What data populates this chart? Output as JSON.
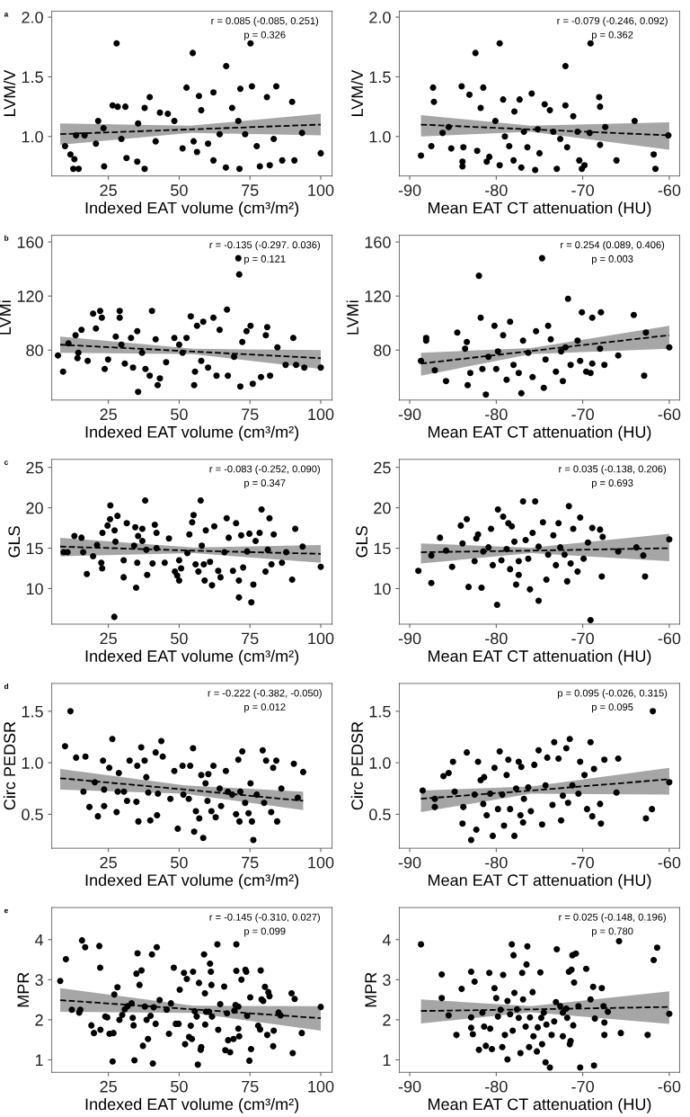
{
  "chart_data": [
    {
      "type": "scatter",
      "title": "a",
      "xlabel": "Indexed EAT volume (cm³/m²)",
      "ylabel": "LVM/V",
      "xlim": [
        5,
        104
      ],
      "xticks": [
        25,
        50,
        75,
        100
      ],
      "ylim": [
        0.67,
        2.05
      ],
      "yticks": [
        {
          "value": 1,
          "label": "1.0"
        },
        {
          "value": 1.5,
          "label": "1.5"
        },
        {
          "value": 2,
          "label": "2.0"
        }
      ],
      "annotations": [
        "r = 0.085 (-0.085, 0.251)",
        "p = 0.326"
      ],
      "series": [
        {
          "marker": "circle",
          "color": "#000000",
          "x": [
            9.7,
            11.6,
            13.6,
            16.6,
            13,
            12.6,
            14.5,
            21.4,
            23.3,
            20.6,
            23.5,
            26.5,
            27.9,
            28.3,
            29.6,
            31,
            31.4,
            35.2,
            35.5,
            37.8,
            37.8,
            39.6,
            41.7,
            43.2,
            46,
            48.3,
            51.2,
            52.6,
            54.8,
            55.1,
            57,
            56.3,
            57.8,
            60.2,
            62.1,
            62.1,
            64.3,
            66.6,
            66.5,
            68.7,
            70.9,
            71.3,
            71.6,
            73.3,
            75.2,
            75.7,
            77.4,
            78.5,
            81,
            82,
            83.4,
            84.3,
            86.4,
            89.9,
            90.7,
            93.4,
            100
          ],
          "values": [
            0.92,
            0.85,
            1.01,
            1.01,
            0.81,
            0.73,
            0.73,
            1.13,
            1.07,
            0.94,
            0.75,
            1.26,
            1.78,
            1.25,
            0.98,
            1.25,
            0.82,
            0.79,
            1.11,
            1.24,
            0.73,
            1.33,
            0.96,
            1.2,
            1.19,
            1.13,
            0.9,
            1.41,
            1.7,
            0.96,
            1.34,
            0.87,
            1.22,
            0.94,
            1.37,
            0.8,
            1.02,
            1.59,
            0.74,
            1.24,
            1.13,
            0.73,
            1.4,
            1.02,
            1.78,
            1.42,
            0.92,
            0.75,
            1.33,
            0.76,
            0.98,
            1.42,
            0.8,
            1.29,
            0.8,
            1.03,
            0.86
          ]
        },
        {
          "type": "line",
          "color": "#000000",
          "line_style": "dashed",
          "x": [
            8,
            54,
            100
          ],
          "values": [
            1.02,
            1.06,
            1.1
          ],
          "lower": [
            0.93,
            1.03,
            1.01
          ],
          "upper": [
            1.11,
            1.09,
            1.19
          ]
        }
      ]
    },
    {
      "type": "scatter",
      "xlabel": "Mean EAT CT attenuation (HU)",
      "ylabel": "LVM/V",
      "xlim": [
        -91.2,
        -58.8
      ],
      "xticks": [
        -90,
        -80,
        -70,
        -60
      ],
      "ylim": [
        0.67,
        2.05
      ],
      "yticks": [
        {
          "value": 1,
          "label": "1.0"
        },
        {
          "value": 1.5,
          "label": "1.5"
        },
        {
          "value": 2,
          "label": "2.0"
        }
      ],
      "annotations": [
        "r = -0.079 (-0.246, 0.092)",
        "p = 0.362"
      ],
      "series": [
        {
          "marker": "circle",
          "color": "#000000",
          "x": [
            -88.7,
            -87.3,
            -87.2,
            -87.5,
            -86.2,
            -85.5,
            -85.2,
            -84,
            -83.9,
            -83.9,
            -83.8,
            -83.1,
            -82.4,
            -82.2,
            -81.8,
            -81.5,
            -81.1,
            -80.8,
            -80.1,
            -79.6,
            -79.6,
            -79.2,
            -79,
            -78.5,
            -78,
            -77.9,
            -77.3,
            -77.1,
            -76.8,
            -76.4,
            -75.9,
            -75.5,
            -75.2,
            -75,
            -74.4,
            -73.8,
            -73.4,
            -73,
            -72.6,
            -72,
            -72,
            -71.8,
            -71.1,
            -70.6,
            -70.4,
            -70.1,
            -69.8,
            -69.1,
            -69.2,
            -68.1,
            -68,
            -68,
            -67.4,
            -66.1,
            -64,
            -61.8,
            -61.6,
            -60.1
          ],
          "values": [
            0.84,
            1.41,
            1.29,
            0.92,
            1.03,
            1.08,
            0.9,
            1.42,
            0.79,
            0.75,
            0.91,
            1.35,
            1.7,
            0.88,
            1.24,
            1.41,
            0.79,
            0.83,
            1.13,
            1.78,
            0.76,
            1.31,
            1,
            0.92,
            0.8,
            1.21,
            1.31,
            0.74,
            1.04,
            0.91,
            1.36,
            0.72,
            1.06,
            0.86,
            1.27,
            1.22,
            1.04,
            0.73,
            0.98,
            1.59,
            1.26,
            0.91,
            1.17,
            1.04,
            0.8,
            0.73,
            0.76,
            1.78,
            1.03,
            1.33,
            1.25,
            0.93,
            1.08,
            0.8,
            1.13,
            0.85,
            0.73,
            1.01
          ]
        },
        {
          "type": "line",
          "color": "#000000",
          "line_style": "dashed",
          "x": [
            -88.7,
            -76,
            -60
          ],
          "values": [
            1.1,
            1.06,
            1.01
          ],
          "lower": [
            1.0,
            1.04,
            0.89
          ],
          "upper": [
            1.18,
            1.09,
            1.12
          ]
        }
      ]
    },
    {
      "type": "scatter",
      "title": "b",
      "xlabel": "Indexed EAT volume (cm³/m²)",
      "ylabel": "LVMi",
      "xlim": [
        5,
        104
      ],
      "xticks": [
        25,
        50,
        75,
        100
      ],
      "ylim": [
        43,
        165
      ],
      "yticks": [
        80,
        120,
        160
      ],
      "annotations": [
        "r = -0.135 (-0.297. 0.036)",
        "p = 0.121"
      ],
      "series": [
        {
          "marker": "circle",
          "color": "#000000",
          "x": [
            7.2,
            9,
            10.9,
            13.4,
            14.1,
            14.4,
            15.5,
            17.7,
            19.6,
            20.6,
            22.1,
            22.7,
            23.7,
            24.9,
            27.6,
            29,
            29,
            29.6,
            30.8,
            33,
            33.7,
            35.2,
            35.5,
            36.9,
            38.1,
            39.6,
            40.4,
            41.7,
            42.4,
            43.2,
            45.4,
            48.3,
            50,
            51.2,
            52.6,
            54.1,
            55.3,
            55.6,
            56.3,
            57.8,
            58.5,
            60.2,
            62.1,
            63.2,
            64.3,
            66.9,
            67.2,
            69.4,
            70.9,
            71.2,
            71.6,
            72.3,
            73.8,
            75.2,
            76,
            78.9,
            80.6,
            81.1,
            82.1,
            84.7,
            87.6,
            90.3,
            91.3,
            94.2,
            100
          ],
          "values": [
            76,
            64,
            85,
            91,
            74,
            78,
            95,
            72,
            107,
            96,
            109,
            104,
            66,
            73,
            90,
            109,
            104,
            84,
            70,
            89,
            67,
            94,
            49,
            78,
            66,
            61,
            109,
            88,
            54,
            59,
            71,
            89,
            84,
            78,
            89,
            105,
            54,
            64,
            98,
            72,
            101,
            67,
            104,
            61,
            95,
            110,
            61,
            75,
            148,
            136,
            53,
            86,
            94,
            98,
            55,
            60,
            91,
            97,
            61,
            82,
            69,
            89,
            69,
            67,
            67
          ]
        },
        {
          "type": "line",
          "color": "#000000",
          "line_style": "dashed",
          "x": [
            8,
            55,
            100
          ],
          "values": [
            84,
            78.9,
            74
          ],
          "lower": [
            78,
            77,
            66
          ],
          "upper": [
            90,
            81,
            80
          ]
        }
      ]
    },
    {
      "type": "scatter",
      "xlabel": "Mean EAT CT attenuation (HU)",
      "ylabel": "LVMi",
      "xlim": [
        -91.2,
        -58.8
      ],
      "xticks": [
        -90,
        -80,
        -70,
        -60
      ],
      "ylim": [
        43,
        165
      ],
      "yticks": [
        80,
        120,
        160
      ],
      "annotations": [
        "r = 0.254 (0.089, 0.406)",
        "p = 0.003"
      ],
      "series": [
        {
          "marker": "circle",
          "color": "#000000",
          "x": [
            -88.7,
            -88.1,
            -88.1,
            -87.1,
            -85.8,
            -84.5,
            -83.6,
            -83.4,
            -83.3,
            -83,
            -82,
            -81.8,
            -81.6,
            -81.2,
            -80.9,
            -80.2,
            -80,
            -79.8,
            -79.2,
            -78.8,
            -78.4,
            -78,
            -77.4,
            -77.1,
            -76.9,
            -76.3,
            -75.8,
            -75.4,
            -74.7,
            -74.5,
            -74.3,
            -74,
            -73.7,
            -73.1,
            -72.5,
            -72.3,
            -72,
            -71.7,
            -71.4,
            -70.6,
            -70.3,
            -70.1,
            -69.6,
            -69.1,
            -68.9,
            -68.9,
            -68,
            -67.9,
            -67.5,
            -65.9,
            -64.1,
            -62.9,
            -62.7,
            -60
          ],
          "values": [
            72,
            89,
            87,
            65,
            57,
            93,
            81,
            86,
            54,
            63,
            135,
            104,
            66,
            47,
            75,
            98,
            66,
            79,
            91,
            58,
            101,
            69,
            63,
            48,
            87,
            78,
            60,
            94,
            148,
            52,
            73,
            98,
            88,
            64,
            79,
            57,
            82,
            118,
            69,
            87,
            72,
            108,
            64,
            63,
            104,
            70,
            81,
            108,
            69,
            76,
            106,
            61,
            93,
            82
          ]
        },
        {
          "type": "line",
          "color": "#000000",
          "line_style": "dashed",
          "x": [
            -88.7,
            -76,
            -60
          ],
          "values": [
            70,
            79.3,
            91
          ],
          "lower": [
            61,
            77,
            81
          ],
          "upper": [
            78,
            81.5,
            98
          ]
        }
      ]
    },
    {
      "type": "scatter",
      "title": "c",
      "xlabel": "Indexed EAT volume (cm³/m²)",
      "ylabel": "GLS",
      "xlim": [
        5,
        104
      ],
      "xticks": [
        25,
        50,
        75,
        100
      ],
      "ylim": [
        5.6,
        26
      ],
      "yticks": [
        10,
        15,
        20,
        25
      ],
      "annotations": [
        "r = -0.083 (-0.252, 0.090)",
        "p = 0.347"
      ],
      "series": [
        {
          "marker": "circle",
          "color": "#000000",
          "x": [
            9.2,
            10.6,
            13,
            15.5,
            16.1,
            17.4,
            19.6,
            21,
            22.5,
            22.8,
            22.9,
            24.7,
            25.6,
            25.7,
            27.2,
            27.5,
            28.2,
            27.1,
            30.4,
            30.4,
            31.5,
            34.1,
            34.5,
            34.8,
            35.2,
            35.5,
            37,
            37,
            38,
            38.4,
            38.7,
            40.6,
            41.4,
            42,
            42,
            44.9,
            46.4,
            48.5,
            49.3,
            50,
            50,
            50.7,
            52.9,
            53.6,
            54.6,
            55.1,
            55.8,
            56.8,
            57.6,
            58,
            58.7,
            59,
            59.4,
            60.9,
            61.6,
            62.4,
            63.8,
            64.6,
            66,
            66.8,
            67.5,
            69,
            70.1,
            71.1,
            71.1,
            71.9,
            72.6,
            74,
            74.8,
            75.5,
            76.2,
            77,
            78.4,
            79.1,
            80.5,
            81.3,
            81.9,
            82.6,
            83.4,
            86.3,
            87.8,
            89.9,
            91,
            93.6,
            100
          ],
          "values": [
            14.5,
            14.5,
            16.5,
            16.3,
            14.5,
            11.8,
            14,
            15.4,
            13.2,
            12.5,
            16.9,
            17.8,
            18.6,
            20.3,
            17.2,
            15.8,
            19,
            6.5,
            13.5,
            11.4,
            18.1,
            15.3,
            17.6,
            10.1,
            13.2,
            16.5,
            17.4,
            15.9,
            20.9,
            14.8,
            11.7,
            13.1,
            17.9,
            15,
            16.9,
            13.2,
            16.2,
            12.1,
            11.6,
            13.5,
            11,
            12.5,
            14.4,
            16.7,
            18.2,
            19.1,
            13,
            12.1,
            20.9,
            15.3,
            13,
            11,
            17.2,
            13.3,
            10.4,
            17.7,
            12.2,
            11.4,
            14.5,
            18.7,
            16.3,
            12.2,
            18.1,
            11,
            8.9,
            16.6,
            12.6,
            14.6,
            16.8,
            8.3,
            10.5,
            15.9,
            16.9,
            19.8,
            12.1,
            14.8,
            18.7,
            13,
            16.7,
            13.2,
            14.5,
            11.1,
            17.4,
            15.2,
            12.7
          ]
        },
        {
          "type": "line",
          "color": "#000000",
          "line_style": "dashed",
          "x": [
            8,
            55,
            100
          ],
          "values": [
            15.2,
            14.7,
            14.3
          ],
          "lower": [
            14.0,
            14.4,
            13.2
          ],
          "upper": [
            16.3,
            15.1,
            15.4
          ]
        }
      ]
    },
    {
      "type": "scatter",
      "xlabel": "Mean EAT CT attenuation (HU)",
      "ylabel": "GLS",
      "xlim": [
        -91.2,
        -58.8
      ],
      "xticks": [
        -90,
        -80,
        -70,
        -60
      ],
      "ylim": [
        5.6,
        26
      ],
      "yticks": [
        10,
        15,
        20,
        25
      ],
      "annotations": [
        "r = 0.035 (-0.138, 0.206)",
        "p = 0.693"
      ],
      "series": [
        {
          "marker": "circle",
          "color": "#000000",
          "x": [
            -89,
            -87.5,
            -87.5,
            -86.5,
            -85.8,
            -85.1,
            -84.1,
            -83.4,
            -83.9,
            -83.2,
            -82.5,
            -82.3,
            -82.1,
            -81.7,
            -81.5,
            -80.9,
            -80.6,
            -80.4,
            -79.9,
            -79.8,
            -79.4,
            -79.2,
            -78.8,
            -78.6,
            -78.4,
            -78.2,
            -77.9,
            -77.7,
            -77.4,
            -77.4,
            -76.9,
            -76.6,
            -76.3,
            -76.1,
            -75.8,
            -75.5,
            -75.1,
            -75.1,
            -74.6,
            -74.2,
            -74,
            -73.4,
            -73.1,
            -72.8,
            -72.6,
            -72.1,
            -71.8,
            -71.6,
            -71.4,
            -71.1,
            -70.6,
            -70.3,
            -69.9,
            -69.4,
            -69.1,
            -68.9,
            -68,
            -67.8,
            -67.7,
            -65.9,
            -63.8,
            -63,
            -62.8,
            -60
          ],
          "values": [
            12.2,
            10.7,
            14.1,
            16.3,
            14.7,
            12.7,
            17.8,
            18.6,
            15.6,
            10.2,
            13.4,
            16.2,
            16.7,
            10.1,
            14.6,
            15.1,
            17.4,
            12.9,
            8,
            19.8,
            13.5,
            18.9,
            14.9,
            18.1,
            12.4,
            17.7,
            15.8,
            10.5,
            11.7,
            13.4,
            20.8,
            16,
            13.7,
            9.9,
            16.9,
            20.8,
            8.5,
            15.2,
            18.2,
            11.1,
            14.2,
            16.6,
            12.9,
            18.1,
            15.1,
            14.2,
            10.9,
            20.2,
            13.1,
            17.4,
            12.1,
            18.8,
            13.7,
            15.7,
            6.1,
            17.5,
            17.3,
            11.5,
            16.4,
            14.6,
            15.1,
            14.1,
            11.5,
            16.1
          ]
        },
        {
          "type": "line",
          "color": "#000000",
          "line_style": "dashed",
          "x": [
            -88.7,
            -76,
            -60
          ],
          "values": [
            14.5,
            14.7,
            15.0
          ],
          "lower": [
            13.1,
            14.4,
            13.4
          ],
          "upper": [
            15.6,
            15.05,
            16.8
          ]
        }
      ]
    },
    {
      "type": "scatter",
      "title": "d",
      "xlabel": "Indexed EAT volume (cm³/m²)",
      "ylabel": "Circ PEDSR",
      "xlim": [
        5,
        104
      ],
      "xticks": [
        25,
        50,
        75,
        100
      ],
      "ylim": [
        0.17,
        1.77
      ],
      "yticks": [
        {
          "value": 0.5,
          "label": "0.5"
        },
        {
          "value": 1,
          "label": "1.0"
        },
        {
          "value": 1.5,
          "label": "1.5"
        }
      ],
      "annotations": [
        "r = -0.222 (-0.382, -0.050)",
        "p = 0.012"
      ],
      "series": [
        {
          "marker": "circle",
          "color": "#000000",
          "x": [
            9.7,
            11.6,
            13.6,
            16.2,
            16.9,
            18.3,
            20.2,
            21.3,
            23.1,
            23.5,
            23.5,
            25.3,
            26.4,
            27.9,
            28.3,
            28.7,
            30.5,
            31.6,
            32.5,
            34.9,
            35.2,
            35.6,
            36.6,
            37.8,
            38.4,
            39.1,
            39.8,
            41.7,
            42.2,
            42.5,
            43.7,
            44.2,
            46.9,
            48.3,
            49.5,
            51.2,
            51.5,
            53.4,
            53.9,
            54.9,
            55.3,
            55.9,
            57.1,
            57.8,
            58.5,
            59.3,
            60,
            60.3,
            61.4,
            62.1,
            62.9,
            64.3,
            64.8,
            66.5,
            67.2,
            68.7,
            70.1,
            70.9,
            71.3,
            71.6,
            72.3,
            73.3,
            74.5,
            75.2,
            75.7,
            76.2,
            77.4,
            79.5,
            80,
            80.7,
            82.5,
            83.2,
            84.3,
            84.6,
            86.1,
            90.5,
            91.9,
            93.8
          ],
          "values": [
            1.16,
            1.5,
            1.05,
            0.72,
            1.06,
            0.57,
            0.81,
            0.48,
            1.02,
            0.74,
            0.58,
            0.95,
            1.23,
            0.52,
            0.72,
            0.9,
            0.72,
            0.63,
            1.02,
            0.62,
            0.97,
            0.43,
            1.15,
            1.02,
            0.86,
            0.71,
            0.44,
            1.1,
            0.49,
            0.7,
            1.21,
            1.06,
            0.65,
            0.92,
            0.36,
            0.97,
            0.69,
            0.65,
            0.97,
            1.14,
            0.33,
            0.53,
            0.46,
            0.88,
            0.27,
            0.8,
            0.63,
            0.89,
            0.53,
            0.97,
            0.47,
            0.75,
            0.58,
            0.92,
            0.72,
            0.69,
            0.5,
            1.03,
            0.43,
            0.72,
            1.11,
            0.61,
            0.51,
            0.8,
            0.43,
            0.25,
            0.69,
            1.12,
            0.61,
            1.02,
            0.52,
            0.95,
            1.02,
            0.43,
            0.75,
            0.99,
            0.66,
            0.91
          ]
        },
        {
          "type": "line",
          "color": "#000000",
          "line_style": "dashed",
          "x": [
            8,
            52,
            93.8
          ],
          "values": [
            0.85,
            0.74,
            0.63
          ],
          "lower": [
            0.74,
            0.7,
            0.54
          ],
          "upper": [
            0.94,
            0.78,
            0.72
          ]
        }
      ]
    },
    {
      "type": "scatter",
      "xlabel": "Mean EAT CT attenuation (HU)",
      "ylabel": "Circ PEDSR",
      "xlim": [
        -91.2,
        -58.8
      ],
      "xticks": [
        -90,
        -80,
        -70,
        -60
      ],
      "ylim": [
        0.17,
        1.77
      ],
      "yticks": [
        {
          "value": 0.5,
          "label": "0.5"
        },
        {
          "value": 1,
          "label": "1.0"
        },
        {
          "value": 1.5,
          "label": "1.5"
        }
      ],
      "annotations": [
        "p = 0.095 (-0.026, 0.315)",
        "p = 0.095"
      ],
      "series": [
        {
          "marker": "circle",
          "color": "#000000",
          "x": [
            -88.5,
            -87.1,
            -87.1,
            -86.1,
            -85.5,
            -85,
            -84.8,
            -83.9,
            -83.8,
            -83.4,
            -82.9,
            -82.5,
            -82.3,
            -82.1,
            -81.8,
            -81.5,
            -81.4,
            -81.1,
            -80.7,
            -80.4,
            -80.2,
            -79.8,
            -79.6,
            -79.3,
            -79.1,
            -78.8,
            -78.6,
            -78.4,
            -77.9,
            -77.7,
            -77.4,
            -77.2,
            -77.1,
            -76.9,
            -76.8,
            -76.3,
            -76,
            -75.6,
            -75.1,
            -74.7,
            -74.3,
            -74.1,
            -73.5,
            -73.3,
            -72.8,
            -72.5,
            -72.3,
            -71.9,
            -71.7,
            -71.5,
            -71.2,
            -70.5,
            -70.3,
            -69.8,
            -69.5,
            -69.1,
            -68.9,
            -68.7,
            -68,
            -67.9,
            -67.5,
            -66.1,
            -65.9,
            -62.7,
            -62,
            -61.9,
            -60
          ],
          "values": [
            0.73,
            0.65,
            0.57,
            0.87,
            0.9,
            1.01,
            0.72,
            0.41,
            0.57,
            1.1,
            0.25,
            0.69,
            0.35,
            1.01,
            0.83,
            0.6,
            0.86,
            0.49,
            0.7,
            0.29,
            0.95,
            0.55,
            1.11,
            0.69,
            0.39,
            0.88,
            1.03,
            0.55,
            0.29,
            0.75,
            1.01,
            0.49,
            0.96,
            0.42,
            0.65,
            0.76,
            0.53,
            0.98,
            1.12,
            0.4,
            0.78,
            1.05,
            0.59,
            1.2,
            1.04,
            0.44,
            0.68,
            1.14,
            0.61,
            1.23,
            0.78,
            0.7,
            1.01,
            0.88,
            0.55,
            1.2,
            0.48,
            0.94,
            0.6,
            0.41,
            1.03,
            0.71,
            1.04,
            0.46,
            0.55,
            1.5,
            0.81
          ]
        },
        {
          "type": "line",
          "color": "#000000",
          "line_style": "dashed",
          "x": [
            -88.7,
            -76,
            -60
          ],
          "values": [
            0.65,
            0.73,
            0.84
          ],
          "lower": [
            0.52,
            0.7,
            0.69
          ],
          "upper": [
            0.73,
            0.77,
            0.95
          ]
        }
      ]
    },
    {
      "type": "scatter",
      "title": "e",
      "xlabel": "Indexed EAT volume (cm³/m²)",
      "ylabel": "MPR",
      "xlim": [
        5,
        104
      ],
      "xticks": [
        25,
        50,
        75,
        100
      ],
      "ylim": [
        0.69,
        4.8
      ],
      "yticks": [
        1,
        2,
        3,
        4
      ],
      "annotations": [
        "r = -0.145 (-0.310, 0.027)",
        "p = 0.099"
      ],
      "series": [
        {
          "marker": "circle",
          "color": "#000000",
          "x": [
            8,
            10,
            12.1,
            14.7,
            15.1,
            15.7,
            16.8,
            19,
            19.9,
            21.8,
            22.1,
            22.2,
            23.9,
            24.6,
            25.4,
            26.5,
            26.8,
            27.1,
            28.2,
            28.9,
            29.9,
            30.8,
            31.8,
            33.2,
            33.6,
            33.9,
            34.2,
            34.9,
            35.3,
            36,
            36.7,
            37.2,
            37.9,
            38.5,
            39,
            39.9,
            40.4,
            40.7,
            41,
            41.7,
            42.1,
            43.1,
            45.6,
            46.4,
            47.1,
            48.1,
            48.8,
            49.8,
            50.2,
            51.7,
            52.1,
            52.7,
            53.5,
            54.1,
            54.5,
            54.9,
            55.5,
            56.2,
            56.6,
            57,
            57.6,
            57.8,
            58.8,
            59.1,
            59.2,
            59.5,
            60.5,
            60.9,
            61.2,
            61.4,
            61.6,
            63.5,
            63.8,
            64.5,
            65.9,
            66.3,
            66.9,
            67.3,
            68,
            69.2,
            69.5,
            69.9,
            70.2,
            70.2,
            70.9,
            70.9,
            71.2,
            72,
            73.4,
            73.7,
            74,
            74.8,
            75.1,
            75.4,
            77.9,
            78.6,
            78.8,
            79.1,
            79.7,
            80.3,
            81.1,
            81.5,
            81.9,
            83.2,
            83.4,
            85.1,
            85.8,
            89.7,
            90.1,
            90.8,
            93.3,
            100
          ],
          "values": [
            2.97,
            3.51,
            2.25,
            2.18,
            2.25,
            3.98,
            3.81,
            1.86,
            1.67,
            3.84,
            3.3,
            1.75,
            2.08,
            2.06,
            1.65,
            0.96,
            1.67,
            2.63,
            2.81,
            2,
            2.12,
            2.26,
            2.34,
            2.41,
            2.05,
            1.86,
            0.99,
            3.15,
            3.66,
            2.87,
            3.23,
            1.35,
            2.33,
            2,
            1.52,
            2.1,
            3.63,
            0.91,
            2.31,
            1.9,
            3.81,
            2.49,
            2.25,
            1.65,
            2.41,
            3.3,
            1.9,
            1.9,
            2.75,
            3.17,
            1.39,
            3.02,
            1.57,
            1.85,
            1.52,
            3.2,
            2.21,
            2.08,
            0.88,
            2.92,
            1.25,
            1.32,
            3.63,
            2.66,
            1.88,
            2.2,
            2.2,
            3.4,
            3.2,
            2.87,
            2.08,
            3.88,
            1.75,
            2.39,
            2.83,
            1.24,
            2.16,
            1.49,
            1.19,
            1.52,
            2.23,
            2.37,
            3.88,
            3.22,
            2.33,
            1.78,
            1.59,
            3,
            3.25,
            3.2,
            2.1,
            0.98,
            2.56,
            1.27,
            1.85,
            1.76,
            3.23,
            2.51,
            2.47,
            2.82,
            1.62,
            2.69,
            2.59,
            1.34,
            1.73,
            2.18,
            2.11,
            2.66,
            1.17,
            2.52,
            1.67,
            2.32
          ]
        },
        {
          "type": "line",
          "color": "#000000",
          "line_style": "dashed",
          "x": [
            8,
            55,
            100
          ],
          "values": [
            2.49,
            2.26,
            2.04
          ],
          "lower": [
            2.2,
            2.17,
            1.73
          ],
          "upper": [
            2.79,
            2.35,
            2.34
          ]
        }
      ]
    },
    {
      "type": "scatter",
      "xlabel": "Mean EAT CT attenuation (HU)",
      "ylabel": "MPR",
      "xlim": [
        -91.2,
        -58.8
      ],
      "xticks": [
        -90,
        -80,
        -70,
        -60
      ],
      "ylim": [
        0.69,
        4.8
      ],
      "yticks": [
        1,
        2,
        3,
        4
      ],
      "annotations": [
        "r = 0.025 (-0.148, 0.196)",
        "p = 0.780"
      ],
      "series": [
        {
          "marker": "circle",
          "color": "#000000",
          "x": [
            -88.7,
            -86.3,
            -86.3,
            -85.5,
            -84.6,
            -84,
            -82.9,
            -82.9,
            -82.9,
            -82.7,
            -82.5,
            -82,
            -81.6,
            -81.4,
            -81.2,
            -80.8,
            -80.7,
            -80.5,
            -80.2,
            -80,
            -79.8,
            -79.5,
            -79.3,
            -79.2,
            -79,
            -78.7,
            -78.7,
            -78.4,
            -78.2,
            -78.1,
            -78,
            -77.9,
            -77.6,
            -77.4,
            -77.2,
            -77,
            -76.9,
            -76.6,
            -76.5,
            -76.4,
            -76.2,
            -76.1,
            -75.8,
            -75.7,
            -75.3,
            -75.2,
            -74.9,
            -74.8,
            -74.7,
            -74.5,
            -74.3,
            -74.2,
            -73.8,
            -73.6,
            -73.3,
            -73.1,
            -73,
            -72.6,
            -72.3,
            -72.3,
            -71.9,
            -71.8,
            -71.6,
            -71.5,
            -71.4,
            -71.3,
            -71.2,
            -71.1,
            -71,
            -70.8,
            -70.5,
            -70.3,
            -69.6,
            -69.1,
            -68.8,
            -68.7,
            -68.6,
            -67.8,
            -67.6,
            -67.5,
            -67.5,
            -67.1,
            -65.8,
            -65.6,
            -62.5,
            -61.8,
            -61.4,
            -60
          ],
          "values": [
            3.88,
            2.54,
            3.13,
            2.11,
            1.62,
            2.77,
            3.2,
            2.06,
            1.8,
            1.64,
            2.95,
            1.25,
            2.18,
            1.83,
            1.35,
            3.17,
            1.78,
            1.27,
            2.79,
            2.54,
            2.08,
            2.25,
            1.32,
            3.12,
            1.62,
            1.01,
            2.47,
            2.14,
            3.88,
            1.73,
            3.61,
            2.67,
            2.26,
            2.05,
            1.17,
            3.17,
            2.51,
            1.83,
            3.38,
            3.83,
            1.32,
            2.06,
            2.69,
            1.59,
            1.21,
            1.81,
            3.18,
            2.05,
            1.39,
            2.18,
            0.94,
            1.88,
            0.81,
            1.62,
            1.96,
            2.44,
            3.76,
            2.34,
            1.59,
            2.18,
            2.28,
            2.05,
            3.2,
            1.39,
            1.47,
            3.25,
            3.61,
            1.86,
            2.93,
            3.65,
            2.34,
            0.81,
            3.27,
            2.51,
            2.82,
            0.86,
            2.03,
            2.79,
            2.34,
            1.93,
            1.62,
            2.2,
            3.96,
            1.67,
            1.62,
            3.49,
            3.8,
            2.15
          ]
        },
        {
          "type": "line",
          "color": "#000000",
          "line_style": "dashed",
          "x": [
            -88.7,
            -76,
            -60
          ],
          "values": [
            2.22,
            2.26,
            2.32
          ],
          "lower": [
            1.91,
            2.19,
            1.9
          ],
          "upper": [
            2.51,
            2.34,
            2.71
          ]
        }
      ]
    }
  ]
}
